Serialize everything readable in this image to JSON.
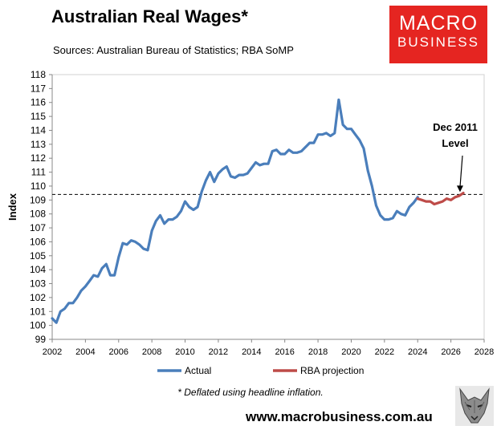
{
  "header": {
    "title": "Australian Real Wages*",
    "subtitle": "Sources: Australian Bureau of Statistics; RBA SoMP"
  },
  "logo": {
    "line1": "MACRO",
    "line2": "BUSINESS",
    "color": "#e52521"
  },
  "footer": {
    "footnote": "* Deflated using headline inflation.",
    "website": "www.macrobusiness.com.au",
    "mascot_icon": "wolf-mascot-icon"
  },
  "chart_data": {
    "type": "line",
    "title": "Australian Real Wages*",
    "ylabel": "Index",
    "xlabel": "",
    "xlim": [
      2002,
      2028
    ],
    "ylim": [
      99,
      118
    ],
    "xticks": [
      2002,
      2004,
      2006,
      2008,
      2010,
      2012,
      2014,
      2016,
      2018,
      2020,
      2022,
      2024,
      2026,
      2028
    ],
    "yticks": [
      99,
      100,
      101,
      102,
      103,
      104,
      105,
      106,
      107,
      108,
      109,
      110,
      111,
      112,
      113,
      114,
      115,
      116,
      117,
      118
    ],
    "grid": false,
    "legend_position": "bottom",
    "reference_line": {
      "y": 109.4,
      "style": "dashed"
    },
    "annotation": {
      "text_line1": "Dec 2011",
      "text_line2": "Level",
      "x": 2026.5,
      "y": 109.4
    },
    "series": [
      {
        "name": "Actual",
        "color": "#4a7ebb",
        "x": [
          2002.0,
          2002.25,
          2002.5,
          2002.75,
          2003.0,
          2003.25,
          2003.5,
          2003.75,
          2004.0,
          2004.25,
          2004.5,
          2004.75,
          2005.0,
          2005.25,
          2005.5,
          2005.75,
          2006.0,
          2006.25,
          2006.5,
          2006.75,
          2007.0,
          2007.25,
          2007.5,
          2007.75,
          2008.0,
          2008.25,
          2008.5,
          2008.75,
          2009.0,
          2009.25,
          2009.5,
          2009.75,
          2010.0,
          2010.25,
          2010.5,
          2010.75,
          2011.0,
          2011.25,
          2011.5,
          2011.75,
          2012.0,
          2012.25,
          2012.5,
          2012.75,
          2013.0,
          2013.25,
          2013.5,
          2013.75,
          2014.0,
          2014.25,
          2014.5,
          2014.75,
          2015.0,
          2015.25,
          2015.5,
          2015.75,
          2016.0,
          2016.25,
          2016.5,
          2016.75,
          2017.0,
          2017.25,
          2017.5,
          2017.75,
          2018.0,
          2018.25,
          2018.5,
          2018.75,
          2019.0,
          2019.25,
          2019.5,
          2019.75,
          2020.0,
          2020.25,
          2020.5,
          2020.75,
          2021.0,
          2021.25,
          2021.5,
          2021.75,
          2022.0,
          2022.25,
          2022.5,
          2022.75,
          2023.0,
          2023.25,
          2023.5,
          2023.75,
          2024.0
        ],
        "values": [
          100.5,
          100.2,
          101.0,
          101.2,
          101.6,
          101.6,
          102.0,
          102.5,
          102.8,
          103.2,
          103.6,
          103.5,
          104.1,
          104.4,
          103.6,
          103.6,
          104.9,
          105.9,
          105.8,
          106.1,
          106.0,
          105.8,
          105.5,
          105.4,
          106.8,
          107.5,
          107.9,
          107.3,
          107.6,
          107.6,
          107.8,
          108.2,
          108.9,
          108.5,
          108.3,
          108.5,
          109.6,
          110.4,
          111.0,
          110.3,
          110.9,
          111.2,
          111.4,
          110.7,
          110.6,
          110.8,
          110.8,
          110.9,
          111.3,
          111.7,
          111.5,
          111.6,
          111.6,
          112.5,
          112.6,
          112.3,
          112.3,
          112.6,
          112.4,
          112.4,
          112.5,
          112.8,
          113.1,
          113.1,
          113.7,
          113.7,
          113.8,
          113.6,
          113.8,
          116.2,
          114.4,
          114.1,
          114.1,
          113.7,
          113.3,
          112.7,
          111.1,
          110.0,
          108.6,
          107.9,
          107.6,
          107.6,
          107.7,
          108.2,
          108.0,
          107.9,
          108.5,
          108.8,
          109.2
        ]
      },
      {
        "name": "RBA projection",
        "color": "#be4b48",
        "x": [
          2024.0,
          2024.25,
          2024.5,
          2024.75,
          2025.0,
          2025.25,
          2025.5,
          2025.75,
          2026.0,
          2026.25,
          2026.5,
          2026.75
        ],
        "values": [
          109.1,
          109.0,
          108.9,
          108.9,
          108.7,
          108.8,
          108.9,
          109.1,
          109.0,
          109.2,
          109.3,
          109.5
        ]
      }
    ]
  }
}
